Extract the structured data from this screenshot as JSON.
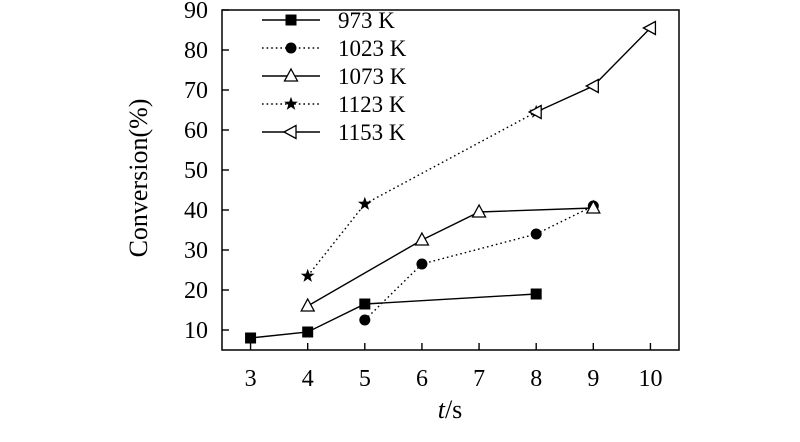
{
  "chart_data": {
    "type": "line",
    "xlabel": {
      "symbol": "t",
      "unit": "/s"
    },
    "ylabel": "Conversion(%)",
    "xlim": [
      2.5,
      10.5
    ],
    "ylim": [
      5,
      90
    ],
    "xticks": [
      3,
      4,
      5,
      6,
      7,
      8,
      9,
      10
    ],
    "yticks": [
      10,
      20,
      30,
      40,
      50,
      60,
      70,
      80,
      90
    ],
    "grid": false,
    "legend": "top-left",
    "series": [
      {
        "name": "973 K",
        "line": "solid",
        "marker": "filled-square",
        "x": [
          3,
          4,
          5,
          8
        ],
        "y": [
          8,
          9.5,
          16.5,
          19
        ]
      },
      {
        "name": "1023 K",
        "line": "dotted",
        "marker": "filled-circle",
        "x": [
          5,
          6,
          8,
          9
        ],
        "y": [
          12.5,
          26.5,
          34,
          41
        ]
      },
      {
        "name": "1073 K",
        "line": "solid",
        "marker": "open-triangle-up",
        "x": [
          4,
          6,
          7,
          9
        ],
        "y": [
          16,
          32.5,
          39.5,
          40.5
        ]
      },
      {
        "name": "1123 K",
        "line": "dotted",
        "marker": "filled-star",
        "x": [
          4,
          5,
          8
        ],
        "y": [
          23.5,
          41.5,
          64.5
        ]
      },
      {
        "name": "1153 K",
        "line": "solid",
        "marker": "open-triangle-left",
        "x": [
          8,
          9,
          10
        ],
        "y": [
          64.5,
          71,
          85.5
        ]
      }
    ]
  }
}
